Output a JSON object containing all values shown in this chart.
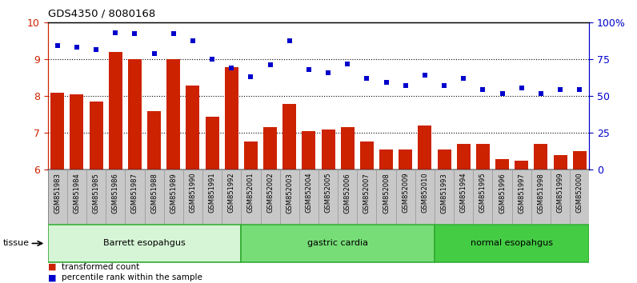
{
  "title": "GDS4350 / 8080168",
  "samples": [
    "GSM851983",
    "GSM851984",
    "GSM851985",
    "GSM851986",
    "GSM851987",
    "GSM851988",
    "GSM851989",
    "GSM851990",
    "GSM851991",
    "GSM851992",
    "GSM852001",
    "GSM852002",
    "GSM852003",
    "GSM852004",
    "GSM852005",
    "GSM852006",
    "GSM852007",
    "GSM852008",
    "GSM852009",
    "GSM852010",
    "GSM851993",
    "GSM851994",
    "GSM851995",
    "GSM851996",
    "GSM851997",
    "GSM851998",
    "GSM851999",
    "GSM852000"
  ],
  "bar_values": [
    8.1,
    8.05,
    7.85,
    9.2,
    9.0,
    7.6,
    9.0,
    8.3,
    7.45,
    8.78,
    6.78,
    7.15,
    7.78,
    7.05,
    7.1,
    7.15,
    6.78,
    6.55,
    6.55,
    7.2,
    6.55,
    6.7,
    6.7,
    6.3,
    6.25,
    6.7,
    6.4,
    6.5
  ],
  "scatter_values": [
    9.38,
    9.33,
    9.27,
    9.72,
    9.7,
    9.17,
    9.7,
    9.5,
    9.0,
    8.77,
    8.53,
    8.85,
    9.5,
    8.73,
    8.63,
    8.88,
    8.48,
    8.38,
    8.28,
    8.58,
    8.28,
    8.48,
    8.18,
    8.08,
    8.23,
    8.08,
    8.18,
    8.18
  ],
  "groups": [
    {
      "label": "Barrett esopahgus",
      "start": 0,
      "end": 10,
      "color": "#d6f5d6"
    },
    {
      "label": "gastric cardia",
      "start": 10,
      "end": 20,
      "color": "#77dd77"
    },
    {
      "label": "normal esopahgus",
      "start": 20,
      "end": 28,
      "color": "#44cc44"
    }
  ],
  "ylim": [
    6,
    10
  ],
  "yticks_left": [
    6,
    7,
    8,
    9,
    10
  ],
  "bar_color": "#cc2200",
  "scatter_color": "#0000cc",
  "bg_color": "#ffffff",
  "tick_bg_color": "#c8c8c8",
  "tick_border_color": "#999999",
  "group_border_color": "#33aa33",
  "tissue_label": "tissue",
  "legend_bar_label": "transformed count",
  "legend_scatter_label": "percentile rank within the sample",
  "right_ytick_labels": [
    "0",
    "25",
    "50",
    "75",
    "100%"
  ],
  "right_ytick_positions": [
    6.0,
    6.5,
    7.0,
    7.5,
    8.0
  ]
}
